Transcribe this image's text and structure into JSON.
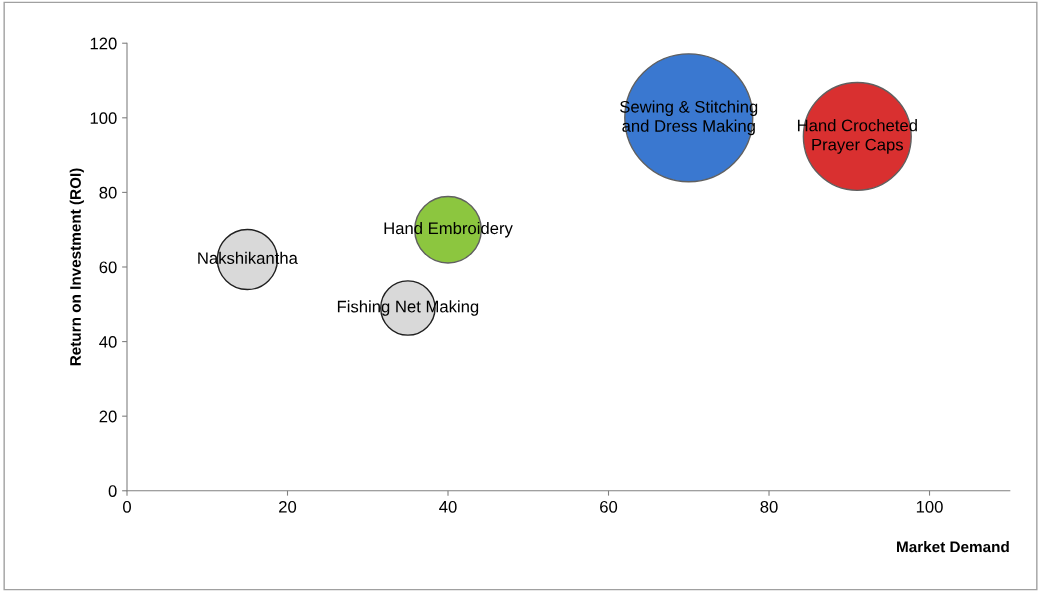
{
  "chart_data": {
    "type": "bubble",
    "xlabel": "Market Demand",
    "ylabel": "Return on Investment (ROI)",
    "xlim": [
      0,
      110
    ],
    "ylim": [
      0,
      120
    ],
    "xticks": [
      0,
      20,
      40,
      60,
      80,
      100
    ],
    "yticks": [
      0,
      20,
      40,
      60,
      80,
      100,
      120
    ],
    "grid": false,
    "legend": false,
    "series": [
      {
        "name": "Nakshikantha",
        "color": "#d9d9d9",
        "x": [
          15
        ],
        "values": [
          62
        ],
        "sizes": [
          0.22
        ]
      },
      {
        "name": "Fishing Net Making",
        "color": "#d9d9d9",
        "x": [
          35
        ],
        "values": [
          49
        ],
        "sizes": [
          0.18
        ]
      },
      {
        "name": "Hand Embroidery",
        "color": "#8cc63f",
        "x": [
          40
        ],
        "values": [
          70
        ],
        "sizes": [
          0.27
        ]
      },
      {
        "name": "Sewing & Stitching\nand Dress Making",
        "color": "#3a78d0",
        "x": [
          70
        ],
        "values": [
          100
        ],
        "sizes": [
          1
        ]
      },
      {
        "name": "Hand Crocheted\nPrayer Caps",
        "color": "#d93030",
        "x": [
          91
        ],
        "values": [
          95
        ],
        "sizes": [
          0.71
        ]
      }
    ]
  }
}
